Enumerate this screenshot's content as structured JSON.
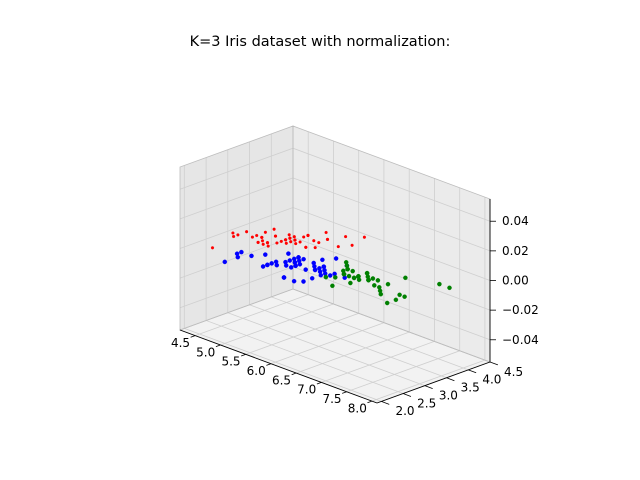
{
  "chart_data": {
    "type": "scatter",
    "title": "K=3 Iris dataset with normalization:",
    "xlabel": "",
    "ylabel": "",
    "zlabel": "",
    "xlim": [
      4.2,
      8.1
    ],
    "ylim": [
      1.9,
      4.5
    ],
    "zlim": [
      -0.055,
      0.055
    ],
    "x_ticks": [
      4.5,
      5.0,
      5.5,
      6.0,
      6.5,
      7.0,
      7.5,
      8.0
    ],
    "y_ticks": [
      2.0,
      2.5,
      3.0,
      3.5,
      4.0,
      4.5
    ],
    "z_ticks": [
      -0.04,
      -0.02,
      0.0,
      0.02,
      0.04
    ],
    "x_tick_labels": [
      "4.5",
      "5.0",
      "5.5",
      "6.0",
      "6.5",
      "7.0",
      "7.5",
      "8.0"
    ],
    "y_tick_labels": [
      "2.0",
      "2.5",
      "3.0",
      "3.5",
      "4.0",
      "4.5"
    ],
    "z_tick_labels": [
      "−0.04",
      "−0.02",
      "0.00",
      "0.02",
      "0.04"
    ],
    "grid": true,
    "legend": false,
    "series": [
      {
        "color": "#ff0000",
        "marker_size": 2,
        "points": [
          [
            5.1,
            3.5
          ],
          [
            4.9,
            3.0
          ],
          [
            4.7,
            3.2
          ],
          [
            4.6,
            3.1
          ],
          [
            5.0,
            3.6
          ],
          [
            5.4,
            3.9
          ],
          [
            4.6,
            3.4
          ],
          [
            5.0,
            3.4
          ],
          [
            4.4,
            2.9
          ],
          [
            4.9,
            3.1
          ],
          [
            5.4,
            3.7
          ],
          [
            4.8,
            3.4
          ],
          [
            4.8,
            3.0
          ],
          [
            4.3,
            3.0
          ],
          [
            5.8,
            4.0
          ],
          [
            5.7,
            4.4
          ],
          [
            5.4,
            3.9
          ],
          [
            5.1,
            3.5
          ],
          [
            5.7,
            3.8
          ],
          [
            5.1,
            3.8
          ],
          [
            5.4,
            3.4
          ],
          [
            5.1,
            3.7
          ],
          [
            4.6,
            3.6
          ],
          [
            5.1,
            3.3
          ],
          [
            4.8,
            3.4
          ],
          [
            5.0,
            3.0
          ],
          [
            5.0,
            3.4
          ],
          [
            5.2,
            3.5
          ],
          [
            5.2,
            3.4
          ],
          [
            4.7,
            3.2
          ],
          [
            4.8,
            3.1
          ],
          [
            5.4,
            3.4
          ],
          [
            5.2,
            4.1
          ],
          [
            5.5,
            4.2
          ],
          [
            4.9,
            3.1
          ],
          [
            5.0,
            3.2
          ],
          [
            5.5,
            3.5
          ],
          [
            4.9,
            3.6
          ],
          [
            4.4,
            3.0
          ],
          [
            5.1,
            3.4
          ],
          [
            5.0,
            3.5
          ],
          [
            4.5,
            2.3
          ],
          [
            4.4,
            3.2
          ],
          [
            5.0,
            3.5
          ],
          [
            5.1,
            3.8
          ],
          [
            4.8,
            3.0
          ],
          [
            5.1,
            3.8
          ],
          [
            4.6,
            3.2
          ],
          [
            5.3,
            3.7
          ],
          [
            5.0,
            3.3
          ]
        ]
      },
      {
        "color": "#0000ff",
        "marker_size": 3,
        "points": [
          [
            5.5,
            2.3
          ],
          [
            5.7,
            2.8
          ],
          [
            6.3,
            3.3
          ],
          [
            4.9,
            2.4
          ],
          [
            6.6,
            2.9
          ],
          [
            5.2,
            2.7
          ],
          [
            5.0,
            2.0
          ],
          [
            5.9,
            3.0
          ],
          [
            6.0,
            2.2
          ],
          [
            6.1,
            2.9
          ],
          [
            5.6,
            2.9
          ],
          [
            5.6,
            3.0
          ],
          [
            5.8,
            2.7
          ],
          [
            6.2,
            2.2
          ],
          [
            5.6,
            2.5
          ],
          [
            5.9,
            3.2
          ],
          [
            6.1,
            2.8
          ],
          [
            6.3,
            2.5
          ],
          [
            6.1,
            2.8
          ],
          [
            6.4,
            2.9
          ],
          [
            6.0,
            2.9
          ],
          [
            5.7,
            2.6
          ],
          [
            5.5,
            2.4
          ],
          [
            5.5,
            2.4
          ],
          [
            5.8,
            2.7
          ],
          [
            6.0,
            2.7
          ],
          [
            5.4,
            3.0
          ],
          [
            6.0,
            3.4
          ],
          [
            6.3,
            2.3
          ],
          [
            5.6,
            3.0
          ],
          [
            5.5,
            2.5
          ],
          [
            5.5,
            2.6
          ],
          [
            6.1,
            3.0
          ],
          [
            5.8,
            2.6
          ],
          [
            5.0,
            2.3
          ],
          [
            5.6,
            2.7
          ],
          [
            5.7,
            3.0
          ],
          [
            5.7,
            2.9
          ],
          [
            6.2,
            2.9
          ],
          [
            5.1,
            2.5
          ],
          [
            5.7,
            2.8
          ],
          [
            5.8,
            2.8
          ],
          [
            4.9,
            2.5
          ],
          [
            6.0,
            2.2
          ],
          [
            6.3,
            2.7
          ],
          [
            6.2,
            2.8
          ],
          [
            6.1,
            3.0
          ],
          [
            6.4,
            2.8
          ],
          [
            5.6,
            2.8
          ],
          [
            6.3,
            2.8
          ]
        ]
      },
      {
        "color": "#008000",
        "marker_size": 3,
        "points": [
          [
            7.0,
            3.2
          ],
          [
            6.4,
            3.2
          ],
          [
            6.9,
            3.1
          ],
          [
            6.5,
            2.8
          ],
          [
            6.7,
            3.1
          ],
          [
            6.6,
            3.0
          ],
          [
            6.8,
            2.8
          ],
          [
            6.7,
            3.0
          ],
          [
            6.7,
            3.1
          ],
          [
            6.3,
            3.3
          ],
          [
            7.1,
            3.0
          ],
          [
            6.5,
            3.0
          ],
          [
            7.6,
            3.0
          ],
          [
            7.3,
            2.9
          ],
          [
            6.7,
            2.5
          ],
          [
            7.2,
            3.6
          ],
          [
            6.5,
            3.2
          ],
          [
            6.4,
            2.7
          ],
          [
            6.8,
            3.0
          ],
          [
            6.4,
            3.2
          ],
          [
            6.5,
            3.0
          ],
          [
            7.7,
            3.8
          ],
          [
            7.7,
            2.6
          ],
          [
            6.9,
            3.2
          ],
          [
            7.7,
            2.8
          ],
          [
            6.7,
            3.3
          ],
          [
            7.2,
            3.2
          ],
          [
            7.2,
            3.0
          ],
          [
            7.4,
            2.8
          ],
          [
            7.9,
            3.8
          ],
          [
            7.7,
            3.0
          ],
          [
            6.4,
            3.1
          ],
          [
            6.9,
            3.1
          ],
          [
            6.7,
            3.1
          ],
          [
            6.9,
            3.1
          ],
          [
            6.8,
            3.2
          ],
          [
            6.7,
            3.3
          ],
          [
            6.7,
            3.0
          ],
          [
            6.5,
            3.0
          ],
          [
            6.2,
            3.4
          ]
        ]
      }
    ]
  }
}
